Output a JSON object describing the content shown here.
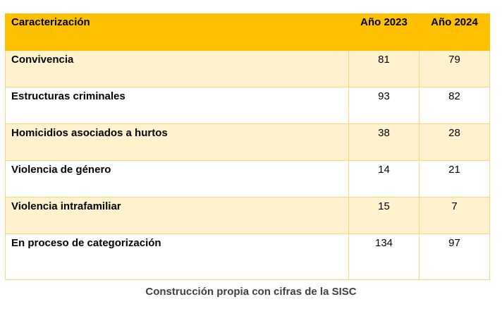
{
  "table": {
    "headers": [
      "Caracterización",
      "Año 2023",
      "Año 2024"
    ],
    "rows": [
      {
        "label": "Convivencia",
        "y2023": "81",
        "y2024": "79"
      },
      {
        "label": "Estructuras criminales",
        "y2023": "93",
        "y2024": "82"
      },
      {
        "label": "Homicidios asociados a hurtos",
        "y2023": "38",
        "y2024": "28"
      },
      {
        "label": "Violencia de género",
        "y2023": "14",
        "y2024": "21"
      },
      {
        "label": "Violencia intrafamiliar",
        "y2023": "15",
        "y2024": "7"
      },
      {
        "label": "En proceso de categorización",
        "y2023": "134",
        "y2024": "97"
      }
    ]
  },
  "caption": "Construcción propia con cifras de la SISC",
  "colors": {
    "header_bg": "#ffc000",
    "band_bg": "#fff2cc",
    "border": "#fcd77a",
    "caption_text": "#404040"
  }
}
